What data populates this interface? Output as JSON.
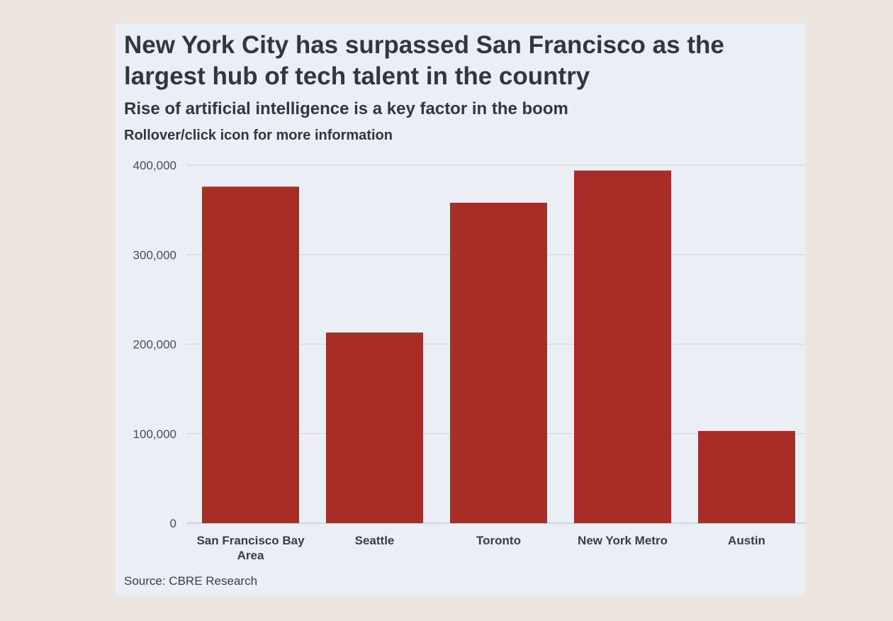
{
  "header": {
    "title": "New York City has surpassed San Francisco as the largest hub of tech talent in the country",
    "subtitle": "Rise of artificial intelligence is a key factor in the boom",
    "note": "Rollover/click icon for more information"
  },
  "footer": {
    "source": "Source: CBRE Research"
  },
  "colors": {
    "bar": "#a82d26",
    "grid": "#d9dce3",
    "text": "#33363b"
  },
  "chart_data": {
    "type": "bar",
    "title": "New York City has surpassed San Francisco as the largest hub of tech talent in the country",
    "subtitle": "Rise of artificial intelligence is a key factor in the boom",
    "categories": [
      "San Francisco Bay Area",
      "Seattle",
      "Toronto",
      "New York Metro",
      "Austin"
    ],
    "values": [
      376000,
      213000,
      358000,
      394000,
      103000
    ],
    "ylim": [
      0,
      400000
    ],
    "yticks": [
      0,
      100000,
      200000,
      300000,
      400000
    ],
    "ytick_labels": [
      "0",
      "100,000",
      "200,000",
      "300,000",
      "400,000"
    ],
    "xlabel": "",
    "ylabel": "",
    "grid": true,
    "legend": "none"
  }
}
